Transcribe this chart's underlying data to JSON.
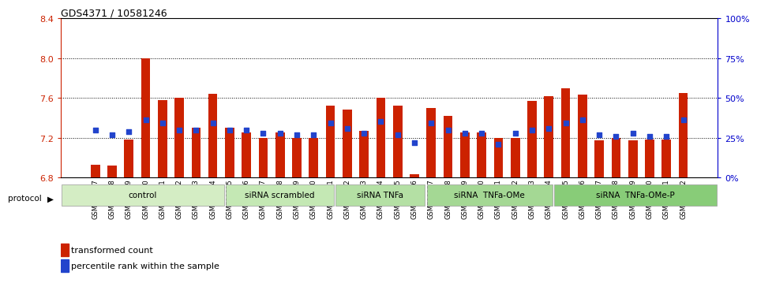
{
  "title": "GDS4371 / 10581246",
  "samples": [
    "GSM790907",
    "GSM790908",
    "GSM790909",
    "GSM790910",
    "GSM790911",
    "GSM790912",
    "GSM790913",
    "GSM790914",
    "GSM790915",
    "GSM790916",
    "GSM790917",
    "GSM790918",
    "GSM790919",
    "GSM790920",
    "GSM790921",
    "GSM790922",
    "GSM790923",
    "GSM790924",
    "GSM790925",
    "GSM790926",
    "GSM790927",
    "GSM790928",
    "GSM790929",
    "GSM790930",
    "GSM790931",
    "GSM790932",
    "GSM790933",
    "GSM790934",
    "GSM790935",
    "GSM790936",
    "GSM790937",
    "GSM790938",
    "GSM790939",
    "GSM790940",
    "GSM790941",
    "GSM790942"
  ],
  "red_values": [
    6.93,
    6.92,
    7.18,
    8.0,
    7.58,
    7.6,
    7.3,
    7.64,
    7.3,
    7.25,
    7.2,
    7.25,
    7.2,
    7.2,
    7.52,
    7.48,
    7.27,
    7.6,
    7.52,
    6.83,
    7.5,
    7.42,
    7.25,
    7.25,
    7.2,
    7.2,
    7.57,
    7.62,
    7.7,
    7.63,
    7.17,
    7.2,
    7.17,
    7.18,
    7.18,
    7.65
  ],
  "blue_pct": [
    30,
    27,
    29,
    36,
    34,
    30,
    30,
    34,
    30,
    30,
    28,
    28,
    27,
    27,
    34,
    31,
    28,
    35,
    27,
    22,
    34,
    30,
    28,
    28,
    21,
    28,
    30,
    31,
    34,
    36,
    27,
    26,
    28,
    26,
    26,
    36
  ],
  "protocols": [
    {
      "label": "control",
      "start": 0,
      "end": 9,
      "color": "#d4edc4"
    },
    {
      "label": "siRNA scrambled",
      "start": 9,
      "end": 15,
      "color": "#c4e8b4"
    },
    {
      "label": "siRNA TNFa",
      "start": 15,
      "end": 20,
      "color": "#b4e0a4"
    },
    {
      "label": "siRNA  TNFa-OMe",
      "start": 20,
      "end": 27,
      "color": "#a4d894"
    },
    {
      "label": "siRNA  TNFa-OMe-P",
      "start": 27,
      "end": 36,
      "color": "#88cc78"
    }
  ],
  "ylim_left": [
    6.8,
    8.4
  ],
  "ylim_right": [
    0,
    100
  ],
  "yticks_left": [
    6.8,
    7.2,
    7.6,
    8.0,
    8.4
  ],
  "yticks_right": [
    0,
    25,
    50,
    75,
    100
  ],
  "bar_color": "#cc2200",
  "dot_color": "#2244cc",
  "bar_width": 0.55,
  "background_color": "#ffffff"
}
